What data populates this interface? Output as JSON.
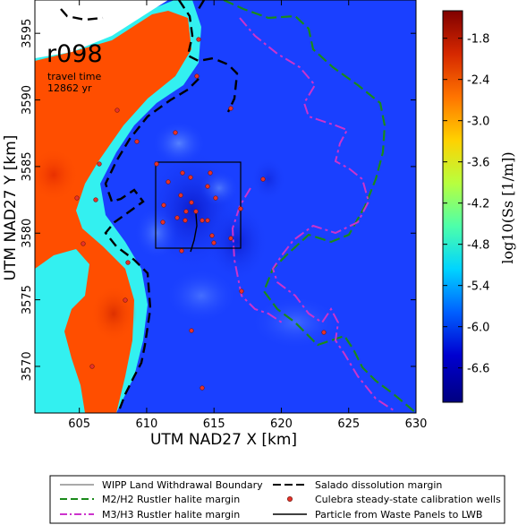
{
  "map": {
    "run_id": "r098",
    "travel_time_line1": "travel time",
    "travel_time_line2": "12862 yr",
    "xlabel": "UTM NAD27 X [km]",
    "ylabel": "UTM NAD27 Y [km]",
    "x_range_km": [
      601.7,
      630
    ],
    "y_range_km": [
      3566.5,
      3597.5
    ],
    "x_ticks": [
      "605",
      "610",
      "615",
      "620",
      "625",
      "630"
    ],
    "y_ticks": [
      "3570",
      "3575",
      "3580",
      "3585",
      "3590",
      "3595"
    ]
  },
  "colorbar": {
    "label": "log10(Ss [1/m])",
    "tick_labels": [
      "-1.8",
      "-2.4",
      "-3.0",
      "-3.6",
      "-4.2",
      "-4.8",
      "-5.4",
      "-6.0",
      "-6.6"
    ],
    "range": [
      -7.1,
      -1.4
    ],
    "colors": [
      "#800000",
      "#d62800",
      "#ff7400",
      "#ffd100",
      "#b8ff3e",
      "#4dffaa",
      "#00d4ff",
      "#0060ff",
      "#0000d0",
      "#000080"
    ]
  },
  "legend": {
    "wipp_boundary": "WIPP Land Withdrawal Boundary",
    "m2h2_margin": "M2/H2 Rustler halite margin",
    "m3h3_margin": "M3/H3 Rustler halite margin",
    "salado_margin": "Salado dissolution margin",
    "calibration_wells": "Culebra steady-state calibration wells",
    "particle_path": "Particle from Waste Panels to LWB"
  },
  "colors": {
    "orange_zone": "#ff4e00",
    "cyan_zone": "#33f0f0",
    "blue_field": "#1a40ff",
    "deep_blue": "#0d1fd8",
    "m2h2_line": "#1a8a1a",
    "m3h3_line": "#cc33cc",
    "salado_line": "#000000",
    "well_fill": "#e8322a"
  }
}
